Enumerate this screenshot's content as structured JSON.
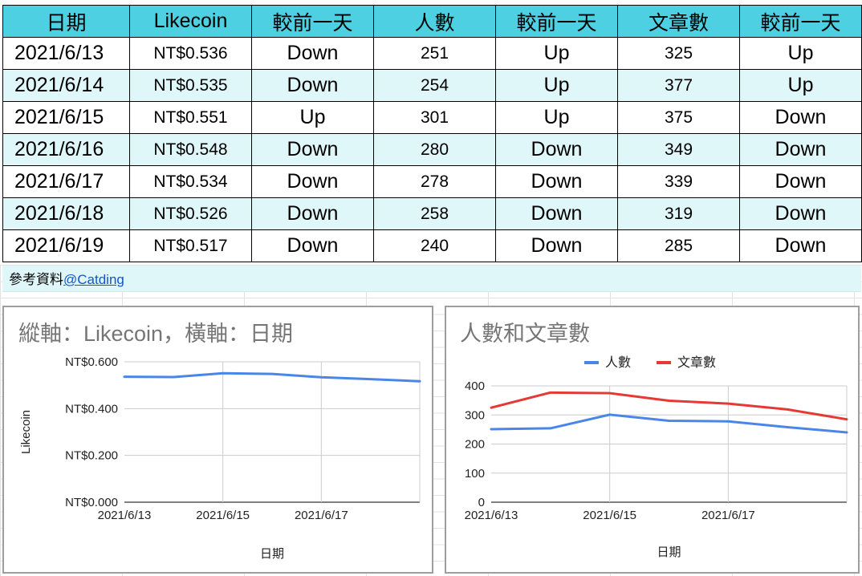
{
  "table": {
    "headers": [
      "日期",
      "Likecoin",
      "較前一天",
      "人數",
      "較前一天",
      "文章數",
      "較前一天"
    ],
    "rows": [
      [
        "2021/6/13",
        "NT$0.536",
        "Down",
        "251",
        "Up",
        "325",
        "Up"
      ],
      [
        "2021/6/14",
        "NT$0.535",
        "Down",
        "254",
        "Up",
        "377",
        "Up"
      ],
      [
        "2021/6/15",
        "NT$0.551",
        "Up",
        "301",
        "Up",
        "375",
        "Down"
      ],
      [
        "2021/6/16",
        "NT$0.548",
        "Down",
        "280",
        "Down",
        "349",
        "Down"
      ],
      [
        "2021/6/17",
        "NT$0.534",
        "Down",
        "278",
        "Down",
        "339",
        "Down"
      ],
      [
        "2021/6/18",
        "NT$0.526",
        "Down",
        "258",
        "Down",
        "319",
        "Down"
      ],
      [
        "2021/6/19",
        "NT$0.517",
        "Down",
        "240",
        "Down",
        "285",
        "Down"
      ]
    ]
  },
  "reference": {
    "label": "參考資料",
    "link_text": "@Catding"
  },
  "colors": {
    "header_bg": "#4dd0e1",
    "alt_row_bg": "#e0f7fa",
    "series_blue": "#4a86e8",
    "series_red": "#e53935"
  },
  "chart_data": [
    {
      "type": "line",
      "title": "縱軸：Likecoin，橫軸：日期",
      "xlabel": "日期",
      "ylabel": "Likecoin",
      "x": [
        "2021/6/13",
        "2021/6/14",
        "2021/6/15",
        "2021/6/16",
        "2021/6/17",
        "2021/6/18",
        "2021/6/19"
      ],
      "x_tick_labels": [
        "2021/6/13",
        "2021/6/15",
        "2021/6/17"
      ],
      "y_ticks": [
        0,
        0.2,
        0.4,
        0.6
      ],
      "y_tick_labels": [
        "NT$0.000",
        "NT$0.200",
        "NT$0.400",
        "NT$0.600"
      ],
      "ylim": [
        0,
        0.6
      ],
      "grid": true,
      "legend": "none",
      "series": [
        {
          "values": [
            0.536,
            0.535,
            0.551,
            0.548,
            0.534,
            0.526,
            0.517
          ],
          "color": "#4a86e8"
        }
      ]
    },
    {
      "type": "line",
      "title": "人數和文章數",
      "xlabel": "日期",
      "ylabel": "",
      "x": [
        "2021/6/13",
        "2021/6/14",
        "2021/6/15",
        "2021/6/16",
        "2021/6/17",
        "2021/6/18",
        "2021/6/19"
      ],
      "x_tick_labels": [
        "2021/6/13",
        "2021/6/15",
        "2021/6/17"
      ],
      "y_ticks": [
        0,
        100,
        200,
        300,
        400
      ],
      "y_tick_labels": [
        "0",
        "100",
        "200",
        "300",
        "400"
      ],
      "ylim": [
        0,
        400
      ],
      "grid": true,
      "legend": "top",
      "series": [
        {
          "name": "人數",
          "values": [
            251,
            254,
            301,
            280,
            278,
            258,
            240
          ],
          "color": "#4a86e8"
        },
        {
          "name": "文章數",
          "values": [
            325,
            377,
            375,
            349,
            339,
            319,
            285
          ],
          "color": "#e53935"
        }
      ]
    }
  ]
}
